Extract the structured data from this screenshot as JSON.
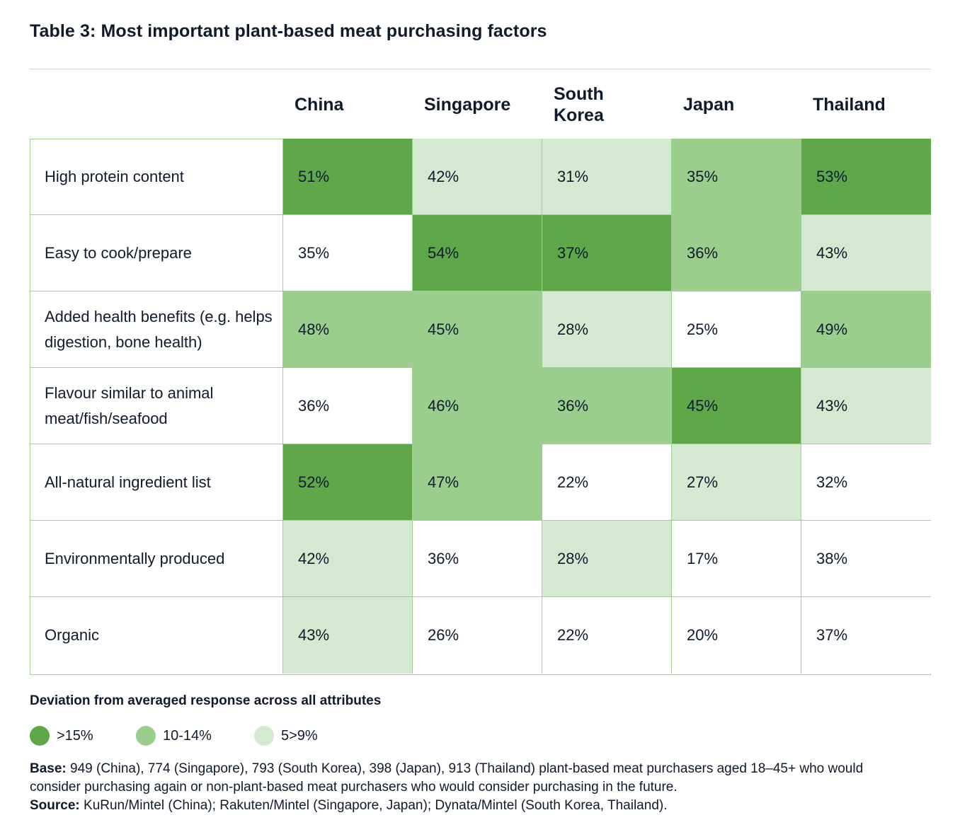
{
  "title": "Table 3: Most important plant-based meat purchasing factors",
  "colors": {
    "high": "#5fa84a",
    "mid": "#9bce8d",
    "low": "#d3ead0",
    "none": "#ffffff",
    "grid": "#9fd08f"
  },
  "columns": [
    "China",
    "Singapore",
    "South Korea",
    "Japan",
    "Thailand"
  ],
  "rows": [
    {
      "label": "High protein content",
      "values": [
        "51%",
        "42%",
        "31%",
        "35%",
        "53%"
      ],
      "levels": [
        "high",
        "low",
        "low",
        "mid",
        "high"
      ]
    },
    {
      "label": "Easy to cook/prepare",
      "values": [
        "35%",
        "54%",
        "37%",
        "36%",
        "43%"
      ],
      "levels": [
        "none",
        "high",
        "high",
        "mid",
        "low"
      ]
    },
    {
      "label": "Added health benefits (e.g. helps digestion, bone health)",
      "values": [
        "48%",
        "45%",
        "28%",
        "25%",
        "49%"
      ],
      "levels": [
        "mid",
        "mid",
        "low",
        "none",
        "mid"
      ]
    },
    {
      "label": "Flavour similar to animal meat/fish/seafood",
      "values": [
        "36%",
        "46%",
        "36%",
        "45%",
        "43%"
      ],
      "levels": [
        "none",
        "mid",
        "mid",
        "high",
        "low"
      ]
    },
    {
      "label": "All-natural ingredient list",
      "values": [
        "52%",
        "47%",
        "22%",
        "27%",
        "32%"
      ],
      "levels": [
        "high",
        "mid",
        "none",
        "low",
        "none"
      ]
    },
    {
      "label": "Environmentally produced",
      "values": [
        "42%",
        "36%",
        "28%",
        "17%",
        "38%"
      ],
      "levels": [
        "low",
        "none",
        "low",
        "none",
        "none"
      ]
    },
    {
      "label": "Organic",
      "values": [
        "43%",
        "26%",
        "22%",
        "20%",
        "37%"
      ],
      "levels": [
        "low",
        "none",
        "none",
        "none",
        "none"
      ]
    }
  ],
  "legend": {
    "title": "Deviation from averaged response across all attributes",
    "items": [
      {
        "label": ">15%",
        "level": "high"
      },
      {
        "label": "10-14%",
        "level": "mid"
      },
      {
        "label": "5>9%",
        "level": "low"
      }
    ]
  },
  "notes": {
    "base_label": "Base:",
    "base_text": "949 (China), 774 (Singapore), 793 (South Korea), 398 (Japan), 913 (Thailand) plant-based meat purchasers aged 18–45+ who would consider purchasing again or non-plant-based meat purchasers who would consider purchasing in the future.",
    "source_label": "Source:",
    "source_text": "KuRun/Mintel (China); Rakuten/Mintel (Singapore, Japan); Dynata/Mintel (South Korea, Thailand)."
  }
}
